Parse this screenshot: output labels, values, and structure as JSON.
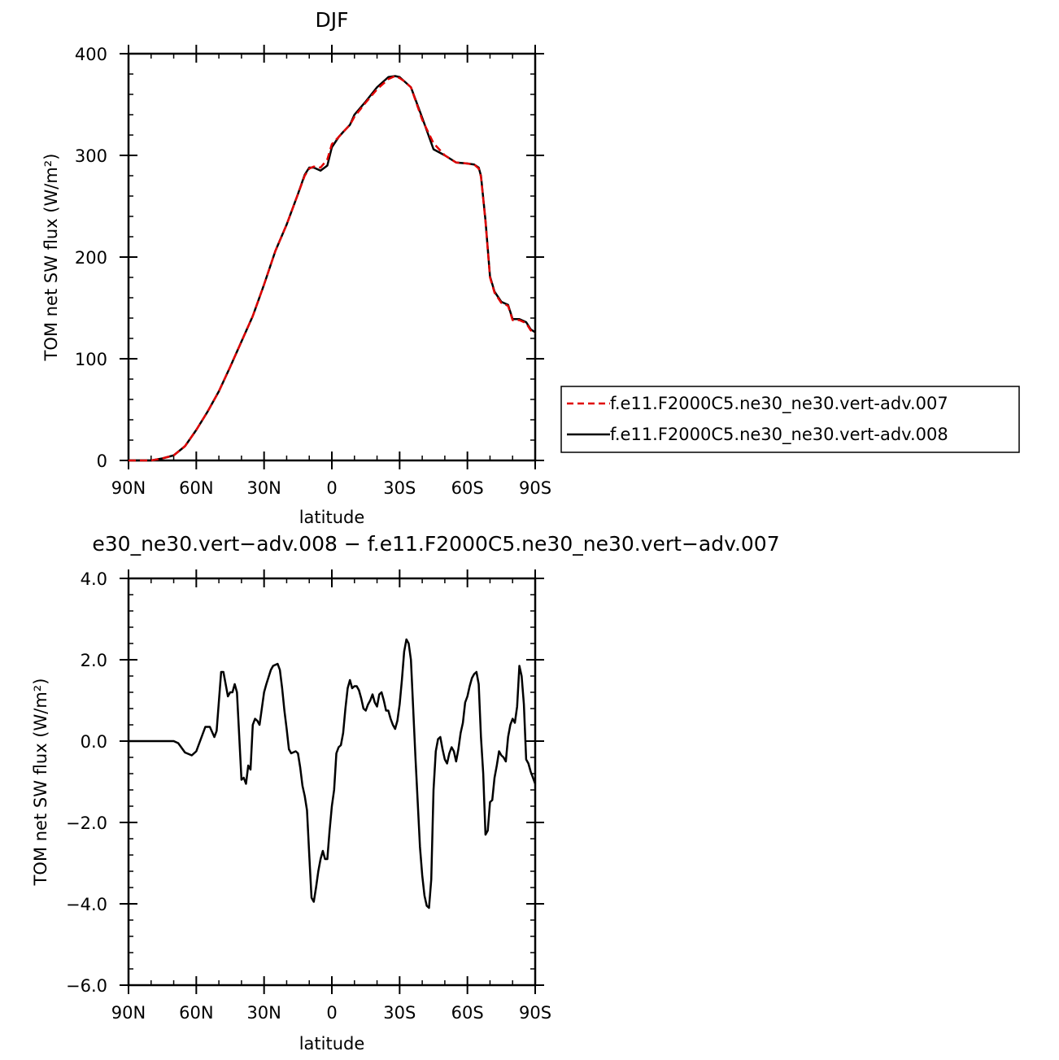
{
  "chart_data": [
    {
      "type": "line",
      "title": "DJF",
      "xlabel": "latitude",
      "ylabel": "TOM net SW flux (W/m²)",
      "xlim": [
        -90,
        90
      ],
      "ylim": [
        0,
        400
      ],
      "xticks": [
        -90,
        -60,
        -30,
        0,
        30,
        60,
        90
      ],
      "xtick_labels": [
        "90N",
        "60N",
        "30N",
        "0",
        "30S",
        "60S",
        "90S"
      ],
      "yticks": [
        0,
        100,
        200,
        300,
        400
      ],
      "ytick_labels": [
        "0",
        "100",
        "200",
        "300",
        "400"
      ],
      "grid": false,
      "legend_position": "right",
      "series": [
        {
          "name": "f.e11.F2000C5.ne30_ne30.vert-adv.007",
          "color": "#e00000",
          "dash": "dashed",
          "x": [
            -90,
            -80,
            -75,
            -70,
            -65,
            -60,
            -55,
            -50,
            -45,
            -40,
            -35,
            -30,
            -25,
            -20,
            -15,
            -12,
            -10,
            -8,
            -5,
            -2,
            0,
            3,
            5,
            8,
            10,
            15,
            20,
            25,
            28,
            30,
            32,
            35,
            40,
            45,
            50,
            55,
            60,
            63,
            65,
            66,
            68,
            70,
            72,
            75,
            78,
            80,
            83,
            86,
            88,
            90
          ],
          "y": [
            0,
            0,
            2,
            5,
            14,
            30,
            48,
            68,
            92,
            117,
            142,
            173,
            206,
            232,
            262,
            280,
            287,
            289,
            288,
            296,
            311,
            318,
            323,
            330,
            338,
            352,
            365,
            375,
            378,
            376,
            373,
            367,
            335,
            312,
            300,
            293,
            292,
            291,
            287,
            279,
            235,
            180,
            165,
            155,
            152,
            138,
            138,
            135,
            128,
            125
          ]
        },
        {
          "name": "f.e11.F2000C5.ne30_ne30.vert-adv.008",
          "color": "#000000",
          "dash": "solid",
          "x": [
            -90,
            -80,
            -75,
            -70,
            -65,
            -60,
            -55,
            -50,
            -45,
            -40,
            -35,
            -30,
            -25,
            -20,
            -15,
            -12,
            -10,
            -8,
            -5,
            -2,
            0,
            3,
            5,
            8,
            10,
            15,
            20,
            25,
            28,
            30,
            32,
            35,
            40,
            45,
            50,
            55,
            60,
            63,
            65,
            66,
            68,
            70,
            72,
            75,
            78,
            80,
            83,
            86,
            88,
            90
          ],
          "y": [
            0,
            0,
            2,
            5,
            14,
            30,
            48,
            68,
            92,
            117,
            142,
            173,
            206,
            232,
            262,
            281,
            288,
            288,
            285,
            290,
            308,
            318,
            323,
            330,
            340,
            353,
            367,
            377,
            378,
            377,
            373,
            367,
            337,
            306,
            300,
            293,
            292,
            291,
            288,
            280,
            236,
            181,
            166,
            156,
            153,
            139,
            139,
            136,
            129,
            126
          ]
        }
      ]
    },
    {
      "type": "line",
      "title": "e30_ne30.vert−adv.008 − f.e11.F2000C5.ne30_ne30.vert−adv.007",
      "xlabel": "latitude",
      "ylabel": "TOM net SW flux (W/m²)",
      "xlim": [
        -90,
        90
      ],
      "ylim": [
        -6,
        4
      ],
      "xticks": [
        -90,
        -60,
        -30,
        0,
        30,
        60,
        90
      ],
      "xtick_labels": [
        "90N",
        "60N",
        "30N",
        "0",
        "30S",
        "60S",
        "90S"
      ],
      "yticks": [
        -6,
        -4,
        -2,
        0,
        2,
        4
      ],
      "ytick_labels": [
        "−6.0",
        "−4.0",
        "−2.0",
        "0.0",
        "2.0",
        "4.0"
      ],
      "grid": false,
      "series": [
        {
          "color": "#000000",
          "dash": "solid",
          "x": [
            -90,
            -70,
            -68,
            -65,
            -62,
            -60,
            -58,
            -56,
            -54,
            -52,
            -51,
            -49,
            -48,
            -46,
            -45,
            -44,
            -43,
            -42,
            -40,
            -39,
            -38,
            -37,
            -36,
            -35,
            -34,
            -33,
            -32,
            -30,
            -29,
            -27,
            -26,
            -24,
            -23,
            -22,
            -21,
            -20,
            -19,
            -18,
            -16,
            -15,
            -14,
            -13,
            -12,
            -11,
            -10,
            -9,
            -8,
            -7,
            -6,
            -5,
            -4,
            -3,
            -2,
            -1,
            0,
            1,
            2,
            3,
            4,
            5,
            6,
            7,
            8,
            9,
            10,
            11,
            12,
            13,
            14,
            15,
            16,
            17,
            18,
            19,
            20,
            21,
            22,
            23,
            24,
            25,
            26,
            27,
            28,
            29,
            30,
            31,
            32,
            33,
            34,
            35,
            36,
            37,
            38,
            39,
            40,
            41,
            42,
            43,
            44,
            45,
            46,
            47,
            48,
            49,
            50,
            51,
            52,
            53,
            54,
            55,
            56,
            57,
            58,
            59,
            60,
            61,
            62,
            63,
            64,
            65,
            66,
            67,
            68,
            69,
            70,
            71,
            72,
            73,
            74,
            75,
            76,
            77,
            78,
            79,
            80,
            81,
            82,
            83,
            84,
            85,
            86,
            87,
            88,
            89,
            90
          ],
          "y": [
            0,
            0,
            -0.05,
            -0.28,
            -0.35,
            -0.25,
            0.05,
            0.35,
            0.35,
            0.1,
            0.25,
            1.7,
            1.7,
            1.1,
            1.2,
            1.2,
            1.4,
            1.2,
            -0.95,
            -0.9,
            -1.05,
            -0.6,
            -0.7,
            0.4,
            0.55,
            0.5,
            0.4,
            1.2,
            1.4,
            1.75,
            1.85,
            1.9,
            1.75,
            1.3,
            0.75,
            0.3,
            -0.2,
            -0.3,
            -0.25,
            -0.3,
            -0.65,
            -1.1,
            -1.35,
            -1.7,
            -2.8,
            -3.85,
            -3.95,
            -3.6,
            -3.2,
            -2.9,
            -2.7,
            -2.9,
            -2.9,
            -2.2,
            -1.6,
            -1.2,
            -0.3,
            -0.15,
            -0.1,
            0.2,
            0.8,
            1.3,
            1.5,
            1.3,
            1.35,
            1.35,
            1.25,
            1.05,
            0.8,
            0.75,
            0.9,
            1.0,
            1.15,
            0.95,
            0.85,
            1.15,
            1.2,
            1.0,
            0.75,
            0.75,
            0.55,
            0.4,
            0.3,
            0.5,
            0.9,
            1.5,
            2.2,
            2.5,
            2.4,
            2.0,
            0.8,
            -0.4,
            -1.5,
            -2.6,
            -3.3,
            -3.8,
            -4.05,
            -4.1,
            -3.4,
            -1.2,
            -0.25,
            0.05,
            0.1,
            -0.2,
            -0.45,
            -0.55,
            -0.3,
            -0.15,
            -0.25,
            -0.5,
            -0.2,
            0.2,
            0.45,
            0.95,
            1.1,
            1.35,
            1.55,
            1.65,
            1.7,
            1.4,
            0.1,
            -0.8,
            -2.3,
            -2.2,
            -1.5,
            -1.45,
            -0.9,
            -0.6,
            -0.25,
            -0.35,
            -0.4,
            -0.5,
            0.1,
            0.4,
            0.55,
            0.45,
            0.85,
            1.85,
            1.6,
            0.9,
            -0.45,
            -0.55,
            -0.75,
            -0.9,
            -1.05
          ]
        }
      ]
    }
  ]
}
